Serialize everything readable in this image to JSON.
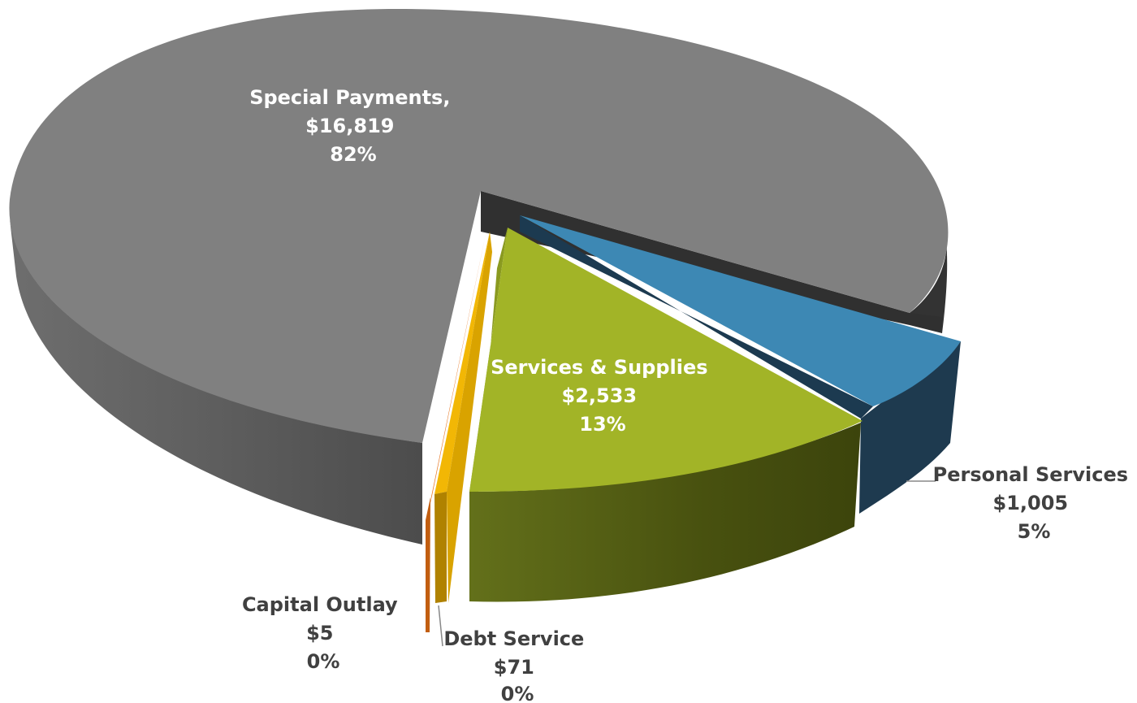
{
  "chart_data": {
    "type": "pie",
    "title": "",
    "categories": [
      "Special Payments",
      "Services & Supplies",
      "Personal Services",
      "Debt Service",
      "Capital Outlay"
    ],
    "values": [
      16819,
      2533,
      1005,
      71,
      5
    ],
    "percent_labels": [
      "82%",
      "13%",
      "5%",
      "0%",
      "0%"
    ],
    "value_labels": [
      "$16,819",
      "$2,533",
      "$1,005",
      "$71",
      "$5"
    ],
    "name_labels": [
      "Special Payments,",
      "Services & Supplies",
      "Personal Services",
      "Debt Service",
      "Capital Outlay"
    ],
    "colors": [
      "#808080",
      "#a2b427",
      "#3d88b4",
      "#f2b705",
      "#e87722"
    ],
    "legend": "none",
    "style": "3d-exploded"
  }
}
